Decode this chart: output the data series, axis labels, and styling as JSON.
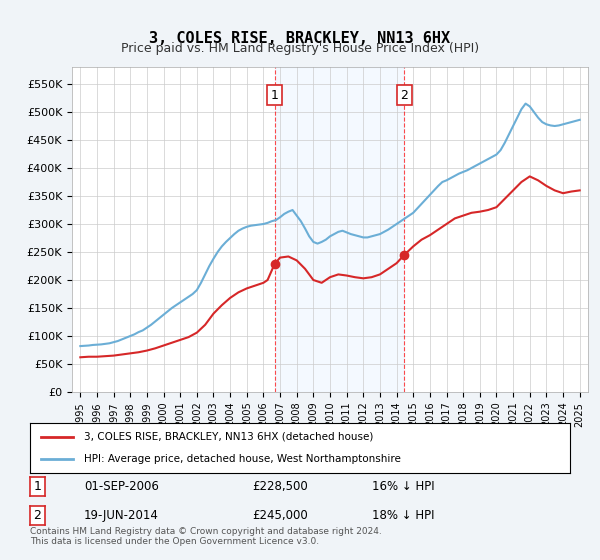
{
  "title": "3, COLES RISE, BRACKLEY, NN13 6HX",
  "subtitle": "Price paid vs. HM Land Registry's House Price Index (HPI)",
  "ylabel_ticks": [
    "£0",
    "£50K",
    "£100K",
    "£150K",
    "£200K",
    "£250K",
    "£300K",
    "£350K",
    "£400K",
    "£450K",
    "£500K",
    "£550K"
  ],
  "ytick_values": [
    0,
    50000,
    100000,
    150000,
    200000,
    250000,
    300000,
    350000,
    400000,
    450000,
    500000,
    550000
  ],
  "ylim": [
    0,
    580000
  ],
  "xlim_start": 1994.5,
  "xlim_end": 2025.5,
  "xtick_years": [
    1995,
    1996,
    1997,
    1998,
    1999,
    2000,
    2001,
    2002,
    2003,
    2004,
    2005,
    2006,
    2007,
    2008,
    2009,
    2010,
    2011,
    2012,
    2013,
    2014,
    2015,
    2016,
    2017,
    2018,
    2019,
    2020,
    2021,
    2022,
    2023,
    2024,
    2025
  ],
  "hpi_color": "#6baed6",
  "price_color": "#d62728",
  "sale1_x": 2006.67,
  "sale1_y": 228500,
  "sale2_x": 2014.47,
  "sale2_y": 245000,
  "vline1_x": 2006.67,
  "vline2_x": 2014.47,
  "legend_line1": "3, COLES RISE, BRACKLEY, NN13 6HX (detached house)",
  "legend_line2": "HPI: Average price, detached house, West Northamptonshire",
  "annotation1_label": "1",
  "annotation2_label": "2",
  "table_row1": [
    "1",
    "01-SEP-2006",
    "£228,500",
    "16% ↓ HPI"
  ],
  "table_row2": [
    "2",
    "19-JUN-2014",
    "£245,000",
    "18% ↓ HPI"
  ],
  "footer": "Contains HM Land Registry data © Crown copyright and database right 2024.\nThis data is licensed under the Open Government Licence v3.0.",
  "bg_color": "#f0f4f8",
  "plot_bg": "#ffffff",
  "vband_color": "#ddeeff"
}
